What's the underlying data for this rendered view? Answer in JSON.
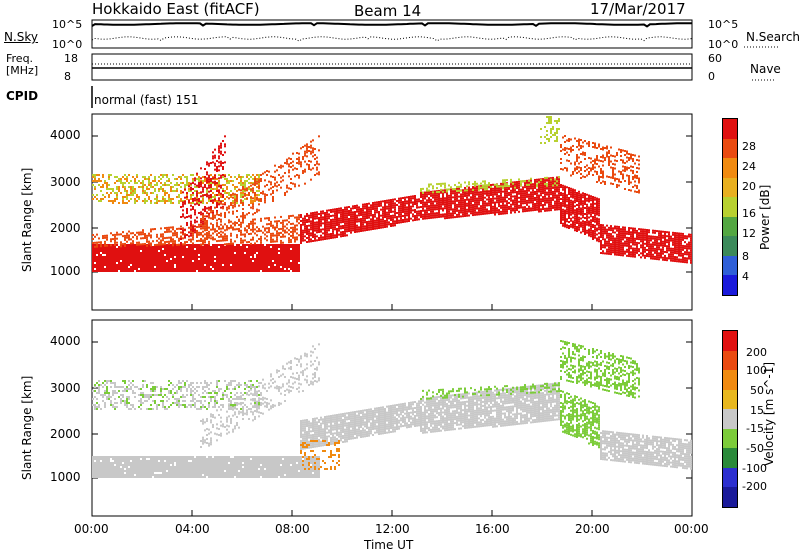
{
  "header": {
    "title": "Hokkaido East (fitACF)",
    "beam": "Beam 14",
    "date": "17/Mar/2017"
  },
  "noise_panel": {
    "left_label": "N.Sky",
    "right_label": "N.Search",
    "left_ticks": [
      "10^5",
      "10^0"
    ],
    "right_ticks": [
      "10^5",
      "10^0"
    ]
  },
  "freq_panel": {
    "left_label_1": "Freq.",
    "left_label_2": "[MHz]",
    "left_ticks": [
      "18",
      "8"
    ],
    "right_label": "Nave",
    "right_ticks": [
      "60",
      "0"
    ]
  },
  "cpid": {
    "label": "CPID",
    "value": "normal (fast) 151"
  },
  "chart_data": [
    {
      "type": "heatmap",
      "panel": "power",
      "ylabel": "Slant Range [km]",
      "yticks": [
        "1000",
        "2000",
        "3000",
        "4000"
      ],
      "ylim": [
        500,
        4500
      ],
      "colorbar_label": "Power [dB]",
      "colorbar_ticks": [
        "4",
        "8",
        "12",
        "16",
        "20",
        "24",
        "28"
      ],
      "colors": [
        "#1a1adb",
        "#2f5fd8",
        "#3b8a5a",
        "#53a742",
        "#b8d130",
        "#e8b020",
        "#f08a10",
        "#ea4a10",
        "#e01010"
      ]
    },
    {
      "type": "heatmap",
      "panel": "velocity",
      "ylabel": "Slant Range [km]",
      "yticks": [
        "1000",
        "2000",
        "3000",
        "4000"
      ],
      "ylim": [
        500,
        4500
      ],
      "xlabel": "Time UT",
      "xticks": [
        "00:00",
        "04:00",
        "08:00",
        "12:00",
        "16:00",
        "20:00",
        "00:00"
      ],
      "colorbar_label": "Velocity [m s^-1]",
      "colorbar_ticks": [
        "200",
        "100",
        "50",
        "15",
        "-15",
        "-50",
        "-100",
        "-200"
      ],
      "colors": [
        "#1a1a9a",
        "#2c2fd0",
        "#2a8a3a",
        "#7ccc3a",
        "#c8c8c8",
        "#e8b820",
        "#f08a10",
        "#ea4a10",
        "#e01010"
      ]
    }
  ]
}
